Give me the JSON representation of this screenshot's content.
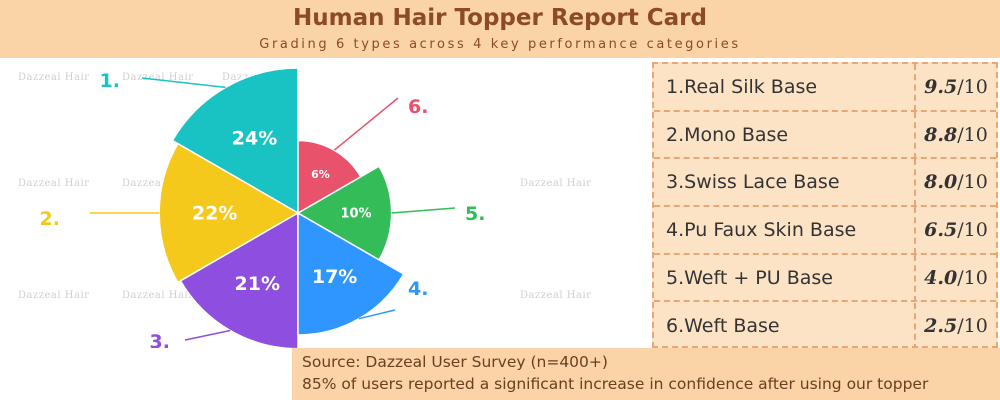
{
  "header": {
    "title": "Human Hair Topper Report Card",
    "subtitle": "Grading 6 types across 4 key performance categories"
  },
  "watermark": "Dazzeal Hair",
  "chart_data": {
    "type": "pie",
    "subtype": "polar-area",
    "slices": [
      {
        "marker": "1.",
        "value": 24,
        "label": "24%",
        "color": "#19c3c3"
      },
      {
        "marker": "2.",
        "value": 22,
        "label": "22%",
        "color": "#f5c91b"
      },
      {
        "marker": "3.",
        "value": 21,
        "label": "21%",
        "color": "#8e4ee0"
      },
      {
        "marker": "4.",
        "value": 17,
        "label": "17%",
        "color": "#2f96ff"
      },
      {
        "marker": "5.",
        "value": 10,
        "label": "10%",
        "color": "#33bc57"
      },
      {
        "marker": "6.",
        "value": 6,
        "label": "6%",
        "color": "#e8526b"
      }
    ]
  },
  "scores": [
    {
      "name": "1.Real Silk Base",
      "score": "9.5",
      "suffix": "/10"
    },
    {
      "name": "2.Mono Base",
      "score": "8.8",
      "suffix": "/10"
    },
    {
      "name": "3.Swiss Lace Base",
      "score": "8.0",
      "suffix": "/10"
    },
    {
      "name": "4.Pu Faux Skin Base",
      "score": "6.5",
      "suffix": "/10"
    },
    {
      "name": "5.Weft + PU Base",
      "score": "4.0",
      "suffix": "/10"
    },
    {
      "name": "6.Weft Base",
      "score": "2.5",
      "suffix": "/10"
    }
  ],
  "footer": {
    "source": "Source: Dazzeal User Survey (n=400+)",
    "note": "85% of users reported a significant increase in confidence after using our topper"
  }
}
